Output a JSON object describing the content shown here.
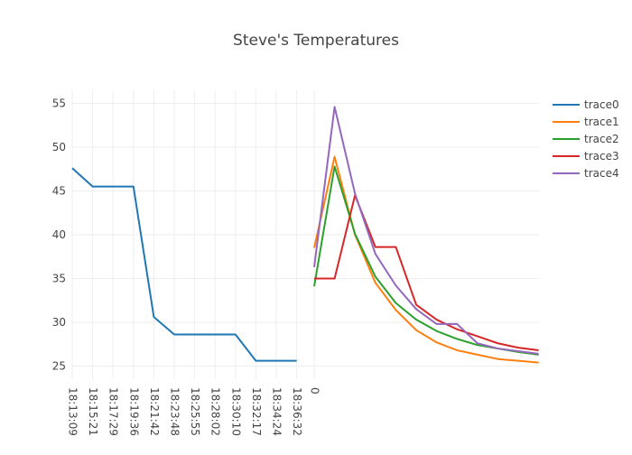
{
  "chart_data": {
    "type": "line",
    "title": "Steve's Temperatures",
    "ylim": [
      23.5,
      56.5
    ],
    "yticks": [
      25,
      30,
      35,
      40,
      45,
      50,
      55
    ],
    "grid": true,
    "legend": "top-right",
    "x_categories": [
      "18:13:09",
      "18:15:21",
      "18:17:29",
      "18:19:36",
      "18:21:42",
      "18:23:48",
      "18:25:55",
      "18:28:02",
      "18:30:10",
      "18:32:17",
      "18:34:24",
      "18:36:32",
      "0"
    ],
    "series": [
      {
        "name": "trace0",
        "color": "#1f77b4",
        "x": [
          "18:13:09",
          "18:15:21",
          "18:17:29",
          "18:19:36",
          "18:21:42",
          "18:23:48",
          "18:25:55",
          "18:28:02",
          "18:30:10",
          "18:32:17",
          "18:34:24",
          "18:36:32"
        ],
        "values": [
          47.6,
          45.5,
          45.5,
          45.5,
          30.6,
          28.6,
          28.6,
          28.6,
          28.6,
          25.6,
          25.6,
          25.6
        ]
      },
      {
        "name": "trace1",
        "color": "#ff7f0e",
        "x_offset": [
          0,
          1,
          2,
          3,
          4,
          5,
          6,
          7,
          8,
          9,
          10,
          11
        ],
        "values": [
          38.5,
          48.9,
          40.0,
          34.5,
          31.4,
          29.1,
          27.7,
          26.8,
          26.3,
          25.8,
          25.6,
          25.4
        ]
      },
      {
        "name": "trace2",
        "color": "#2ca02c",
        "x_offset": [
          0,
          1,
          2,
          3,
          4,
          5,
          6,
          7,
          8,
          9,
          10,
          11
        ],
        "values": [
          34.1,
          47.8,
          40.1,
          35.2,
          32.2,
          30.3,
          29.0,
          28.1,
          27.4,
          27.0,
          26.6,
          26.3
        ]
      },
      {
        "name": "trace3",
        "color": "#d62728",
        "x_offset": [
          0,
          1,
          2,
          3,
          4,
          5,
          6,
          7,
          8,
          9,
          10,
          11
        ],
        "values": [
          35.0,
          35.0,
          44.5,
          38.6,
          38.6,
          32.0,
          30.3,
          29.2,
          28.4,
          27.6,
          27.1,
          26.8
        ]
      },
      {
        "name": "trace4",
        "color": "#9467bd",
        "x_offset": [
          0,
          1,
          2,
          3,
          4,
          5,
          6,
          7,
          8,
          9,
          10,
          11
        ],
        "values": [
          36.3,
          54.6,
          44.7,
          37.8,
          34.2,
          31.5,
          29.8,
          29.8,
          27.6,
          27.0,
          26.7,
          26.4
        ]
      }
    ]
  }
}
